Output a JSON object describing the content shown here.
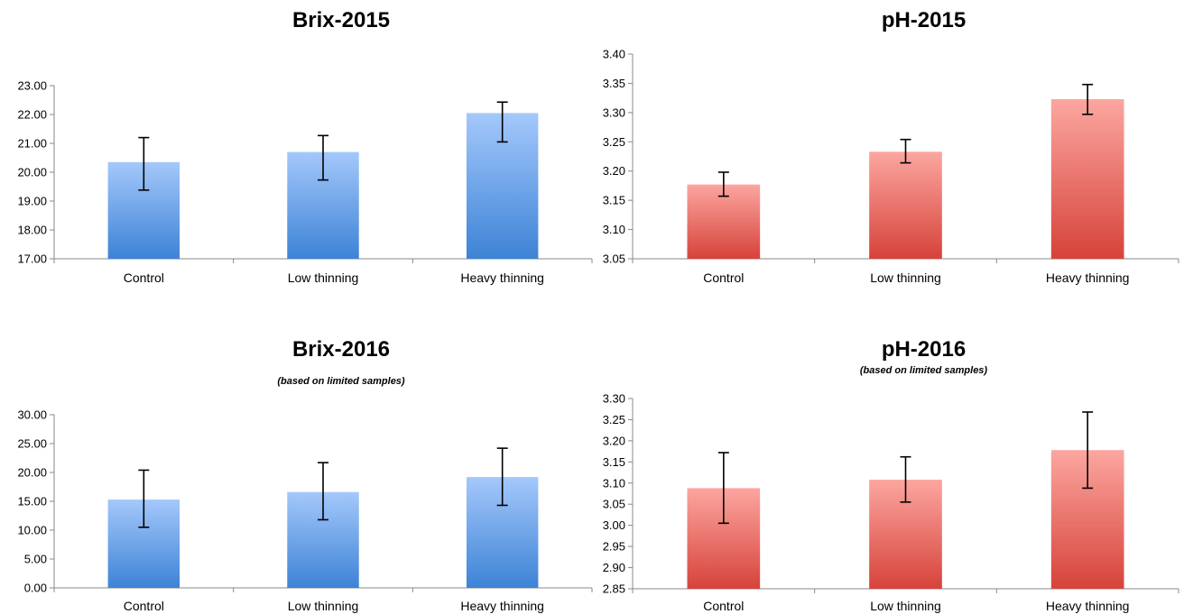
{
  "chart_data": [
    {
      "type": "bar",
      "title": "Brix-2015",
      "subtitle": "",
      "categories": [
        "Control",
        "Low thinning",
        "Heavy thinning"
      ],
      "values": [
        20.35,
        20.7,
        22.05
      ],
      "error_low": [
        19.38,
        19.73,
        21.05
      ],
      "error_high": [
        21.2,
        21.27,
        22.43
      ],
      "ylim": [
        17,
        23
      ],
      "yticks": [
        "17.00",
        "18.00",
        "19.00",
        "20.00",
        "21.00",
        "22.00",
        "23.00"
      ],
      "ytick_values": [
        17,
        18,
        19,
        20,
        21,
        22,
        23
      ],
      "color_top": "#a4c8fb",
      "color_bottom": "#3d83d6"
    },
    {
      "type": "bar",
      "title": "pH-2015",
      "subtitle": "",
      "categories": [
        "Control",
        "Low thinning",
        "Heavy thinning"
      ],
      "values": [
        3.177,
        3.233,
        3.323
      ],
      "error_low": [
        3.157,
        3.214,
        3.297
      ],
      "error_high": [
        3.198,
        3.254,
        3.348
      ],
      "ylim": [
        3.05,
        3.4
      ],
      "yticks": [
        "3.05",
        "3.10",
        "3.15",
        "3.20",
        "3.25",
        "3.30",
        "3.35",
        "3.40"
      ],
      "ytick_values": [
        3.05,
        3.1,
        3.15,
        3.2,
        3.25,
        3.3,
        3.35,
        3.4
      ],
      "color_top": "#fca6a0",
      "color_bottom": "#d6433a"
    },
    {
      "type": "bar",
      "title": "Brix-2016",
      "subtitle": "(based on limited samples)",
      "categories": [
        "Control",
        "Low thinning",
        "Heavy thinning"
      ],
      "values": [
        15.3,
        16.6,
        19.2
      ],
      "error_low": [
        10.5,
        11.8,
        14.3
      ],
      "error_high": [
        20.4,
        21.7,
        24.2
      ],
      "ylim": [
        0,
        30
      ],
      "yticks": [
        "0.00",
        "5.00",
        "10.00",
        "15.00",
        "20.00",
        "25.00",
        "30.00"
      ],
      "ytick_values": [
        0,
        5,
        10,
        15,
        20,
        25,
        30
      ],
      "color_top": "#a4c8fb",
      "color_bottom": "#3d83d6"
    },
    {
      "type": "bar",
      "title": "pH-2016",
      "subtitle": "(based on limited samples)",
      "categories": [
        "Control",
        "Low thinning",
        "Heavy thinning"
      ],
      "values": [
        3.088,
        3.108,
        3.178
      ],
      "error_low": [
        3.005,
        3.055,
        3.088
      ],
      "error_high": [
        3.172,
        3.162,
        3.268
      ],
      "ylim": [
        2.85,
        3.3
      ],
      "yticks": [
        "2.85",
        "2.90",
        "2.95",
        "3.00",
        "3.05",
        "3.10",
        "3.15",
        "3.20",
        "3.25",
        "3.30"
      ],
      "ytick_values": [
        2.85,
        2.9,
        2.95,
        3.0,
        3.05,
        3.1,
        3.15,
        3.2,
        3.25,
        3.3
      ],
      "color_top": "#fca6a0",
      "color_bottom": "#d6433a"
    }
  ]
}
